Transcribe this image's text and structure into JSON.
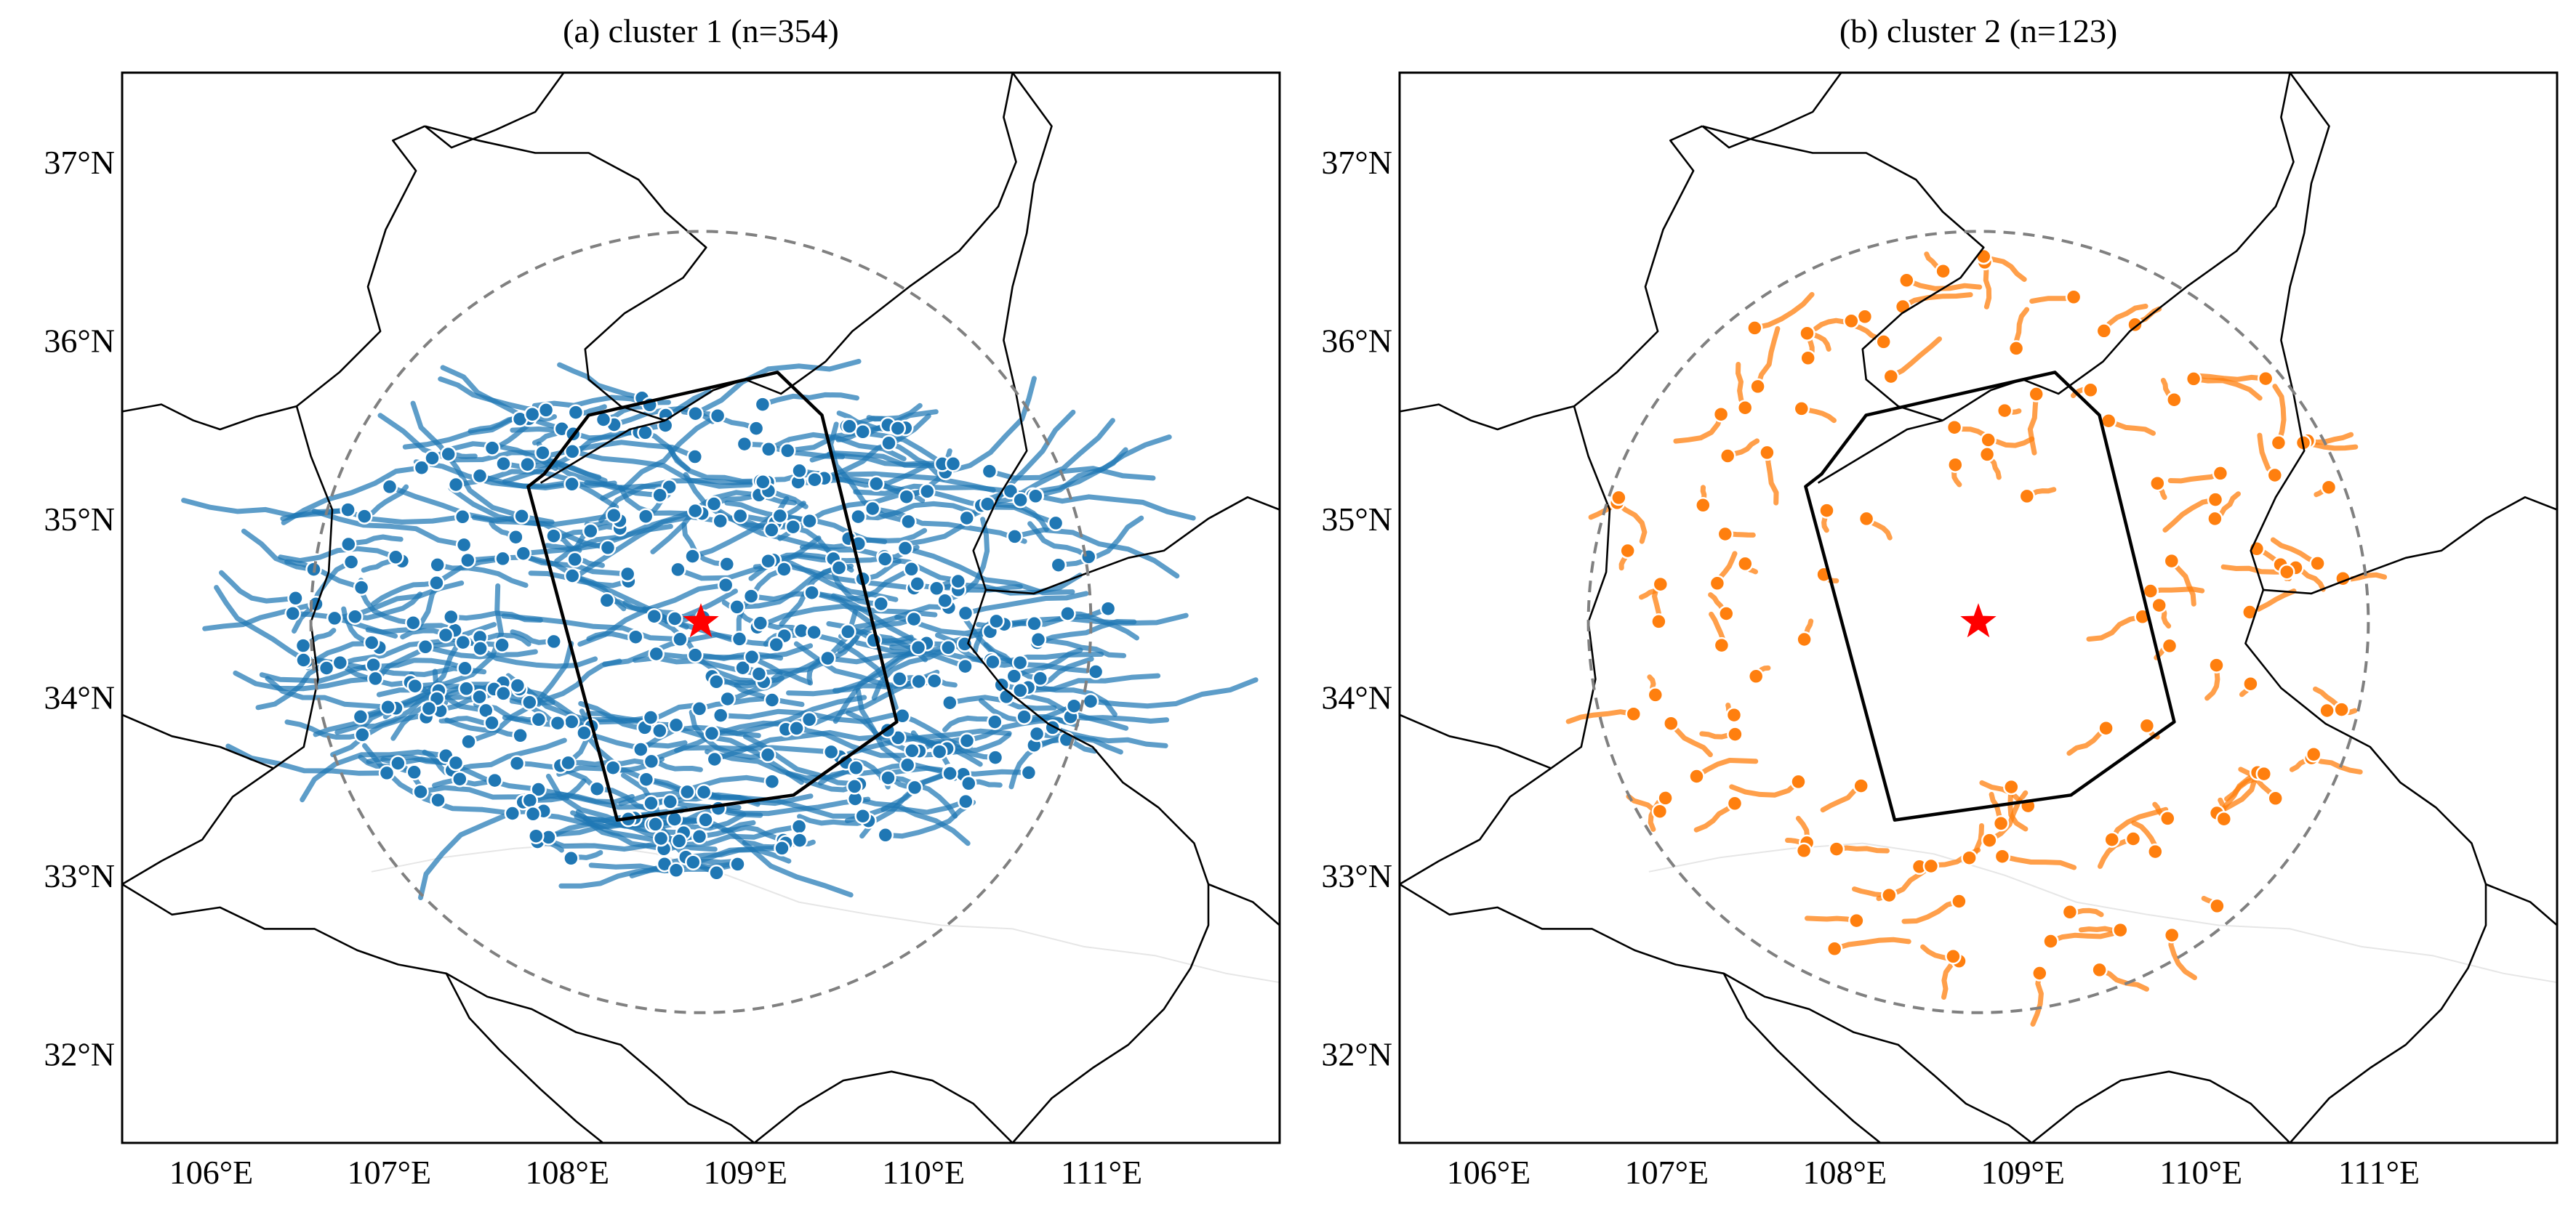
{
  "figure": {
    "panels": [
      {
        "id": "a",
        "title": "(a) cluster 1 (n=354)",
        "track_color": "#1f77b4",
        "track_count": 354,
        "seed": 11
      },
      {
        "id": "b",
        "title": "(b) cluster 2 (n=123)",
        "track_color": "#ff7f0e",
        "track_count": 123,
        "seed": 29
      }
    ],
    "extent": {
      "lon_min": 105.5,
      "lon_max": 112.0,
      "lat_min": 31.5,
      "lat_max": 37.5
    },
    "lon_ticks": [
      106,
      107,
      108,
      109,
      110,
      111
    ],
    "lat_ticks": [
      32,
      33,
      34,
      35,
      36,
      37
    ],
    "lon_tick_labels": [
      "106°E",
      "107°E",
      "108°E",
      "109°E",
      "110°E",
      "111°E"
    ],
    "lat_tick_labels": [
      "32°N",
      "33°N",
      "34°N",
      "35°N",
      "36°N",
      "37°N"
    ],
    "center_marker": {
      "lon": 108.75,
      "lat": 34.42,
      "symbol": "star",
      "color": "#ff0000"
    },
    "radius_circle": {
      "center_lon": 108.75,
      "center_lat": 34.42,
      "radius_deg": 2.19,
      "color": "#808080",
      "style": "dashed"
    },
    "domain_polygon": [
      [
        108.28,
        33.31
      ],
      [
        109.27,
        33.45
      ],
      [
        109.85,
        33.86
      ],
      [
        109.43,
        35.58
      ],
      [
        109.18,
        35.82
      ],
      [
        108.12,
        35.58
      ],
      [
        107.87,
        35.25
      ],
      [
        107.78,
        35.18
      ]
    ],
    "province_borders": [
      [
        [
          105.5,
          35.6
        ],
        [
          105.72,
          35.64
        ],
        [
          105.9,
          35.55
        ],
        [
          106.05,
          35.5
        ],
        [
          106.25,
          35.57
        ],
        [
          106.48,
          35.63
        ]
      ],
      [
        [
          106.48,
          35.63
        ],
        [
          106.56,
          35.35
        ],
        [
          106.68,
          35.05
        ],
        [
          106.66,
          34.7
        ],
        [
          106.56,
          34.42
        ],
        [
          106.6,
          34.1
        ],
        [
          106.52,
          33.72
        ],
        [
          106.35,
          33.6
        ],
        [
          106.12,
          33.44
        ],
        [
          105.95,
          33.2
        ],
        [
          105.72,
          33.08
        ],
        [
          105.5,
          32.95
        ]
      ],
      [
        [
          105.5,
          32.95
        ],
        [
          105.78,
          32.78
        ],
        [
          106.05,
          32.82
        ],
        [
          106.3,
          32.7
        ],
        [
          106.58,
          32.7
        ],
        [
          106.82,
          32.58
        ],
        [
          107.05,
          32.5
        ],
        [
          107.32,
          32.45
        ],
        [
          107.55,
          32.32
        ],
        [
          107.8,
          32.25
        ],
        [
          108.05,
          32.12
        ],
        [
          108.3,
          32.05
        ],
        [
          108.5,
          31.88
        ],
        [
          108.68,
          31.72
        ],
        [
          108.92,
          31.6
        ],
        [
          109.05,
          31.5
        ]
      ],
      [
        [
          106.48,
          35.63
        ],
        [
          106.72,
          35.82
        ],
        [
          106.95,
          36.05
        ],
        [
          106.88,
          36.3
        ],
        [
          106.98,
          36.62
        ],
        [
          107.15,
          36.95
        ],
        [
          107.02,
          37.12
        ],
        [
          107.2,
          37.2
        ]
      ],
      [
        [
          107.2,
          37.2
        ],
        [
          107.35,
          37.08
        ],
        [
          107.6,
          37.18
        ],
        [
          107.82,
          37.28
        ],
        [
          107.98,
          37.5
        ]
      ],
      [
        [
          107.2,
          37.2
        ],
        [
          107.5,
          37.12
        ],
        [
          107.82,
          37.05
        ],
        [
          108.12,
          37.05
        ],
        [
          108.4,
          36.9
        ],
        [
          108.55,
          36.72
        ],
        [
          108.78,
          36.52
        ],
        [
          108.65,
          36.35
        ],
        [
          108.32,
          36.15
        ],
        [
          108.1,
          35.95
        ],
        [
          108.12,
          35.78
        ],
        [
          108.3,
          35.63
        ],
        [
          108.55,
          35.55
        ]
      ],
      [
        [
          108.55,
          35.55
        ],
        [
          108.82,
          35.72
        ],
        [
          109.0,
          35.78
        ],
        [
          109.2,
          35.7
        ],
        [
          109.45,
          35.88
        ],
        [
          109.6,
          36.05
        ],
        [
          109.92,
          36.3
        ],
        [
          110.2,
          36.5
        ],
        [
          110.42,
          36.75
        ],
        [
          110.52,
          37.0
        ],
        [
          110.45,
          37.25
        ],
        [
          110.5,
          37.5
        ]
      ],
      [
        [
          110.5,
          37.5
        ],
        [
          110.72,
          37.2
        ],
        [
          110.62,
          36.88
        ],
        [
          110.58,
          36.6
        ],
        [
          110.5,
          36.3
        ],
        [
          110.45,
          36.0
        ],
        [
          110.52,
          35.7
        ],
        [
          110.58,
          35.38
        ],
        [
          110.42,
          35.12
        ],
        [
          110.28,
          34.82
        ],
        [
          110.35,
          34.6
        ],
        [
          110.25,
          34.3
        ],
        [
          110.45,
          34.05
        ],
        [
          110.7,
          33.85
        ],
        [
          110.95,
          33.72
        ],
        [
          111.12,
          33.52
        ],
        [
          111.32,
          33.38
        ],
        [
          111.52,
          33.18
        ],
        [
          111.6,
          32.95
        ],
        [
          111.85,
          32.85
        ],
        [
          112.0,
          32.72
        ]
      ],
      [
        [
          110.35,
          34.6
        ],
        [
          110.62,
          34.58
        ],
        [
          110.88,
          34.68
        ],
        [
          111.15,
          34.78
        ],
        [
          111.35,
          34.82
        ],
        [
          111.6,
          35.0
        ],
        [
          111.82,
          35.12
        ],
        [
          112.0,
          35.05
        ]
      ],
      [
        [
          107.85,
          35.2
        ],
        [
          108.1,
          35.35
        ],
        [
          108.35,
          35.5
        ],
        [
          108.55,
          35.55
        ]
      ],
      [
        [
          105.5,
          33.9
        ],
        [
          105.78,
          33.78
        ],
        [
          106.05,
          33.72
        ],
        [
          106.35,
          33.6
        ]
      ],
      [
        [
          107.32,
          32.45
        ],
        [
          107.45,
          32.2
        ],
        [
          107.62,
          32.02
        ],
        [
          107.85,
          31.8
        ],
        [
          108.05,
          31.62
        ],
        [
          108.2,
          31.5
        ]
      ],
      [
        [
          109.05,
          31.5
        ],
        [
          109.3,
          31.7
        ],
        [
          109.55,
          31.85
        ],
        [
          109.82,
          31.9
        ],
        [
          110.05,
          31.85
        ],
        [
          110.28,
          31.72
        ],
        [
          110.5,
          31.5
        ]
      ],
      [
        [
          110.5,
          31.5
        ],
        [
          110.72,
          31.75
        ],
        [
          110.95,
          31.92
        ],
        [
          111.15,
          32.05
        ],
        [
          111.35,
          32.25
        ],
        [
          111.5,
          32.48
        ],
        [
          111.6,
          32.72
        ],
        [
          111.6,
          32.95
        ]
      ]
    ],
    "rivers": [
      [
        [
          106.9,
          33.02
        ],
        [
          107.3,
          33.1
        ],
        [
          107.7,
          33.15
        ],
        [
          108.1,
          33.18
        ],
        [
          108.5,
          33.12
        ],
        [
          108.9,
          33.0
        ],
        [
          109.3,
          32.85
        ],
        [
          109.7,
          32.78
        ],
        [
          110.1,
          32.72
        ],
        [
          110.5,
          32.7
        ],
        [
          110.9,
          32.6
        ],
        [
          111.3,
          32.55
        ],
        [
          111.7,
          32.45
        ],
        [
          112.0,
          32.4
        ]
      ]
    ]
  }
}
